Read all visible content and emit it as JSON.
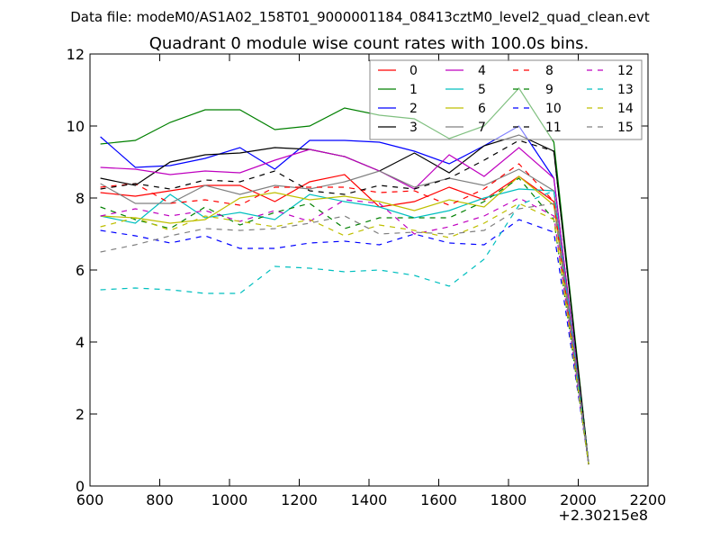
{
  "chart_data": {
    "type": "line",
    "suptitle": "Data file: modeM0/AS1A02_158T01_9000001184_08413cztM0_level2_quad_clean.evt",
    "title": "Quadrant 0 module wise count rates with 100.0s bins.",
    "xlabel": "",
    "ylabel": "",
    "x_offset_label": "+2.30215e8",
    "xlim": [
      600,
      2200
    ],
    "ylim": [
      0,
      12
    ],
    "xticks": [
      "600",
      "800",
      "1000",
      "1200",
      "1400",
      "1600",
      "1800",
      "2000",
      "2200"
    ],
    "yticks": [
      "0",
      "2",
      "4",
      "6",
      "8",
      "10",
      "12"
    ],
    "xtick_values": [
      600,
      800,
      1000,
      1200,
      1400,
      1600,
      1800,
      2000,
      2200
    ],
    "ytick_values": [
      0,
      2,
      4,
      6,
      8,
      10,
      12
    ],
    "grid": false,
    "legend_position": "top-right",
    "x": [
      630,
      730,
      830,
      930,
      1030,
      1130,
      1230,
      1330,
      1430,
      1530,
      1630,
      1730,
      1830,
      1930,
      2030
    ],
    "series": [
      {
        "name": "0",
        "color": "#ff0000",
        "style": "solid",
        "values": [
          8.15,
          8.05,
          8.2,
          8.35,
          8.35,
          7.9,
          8.45,
          8.65,
          7.75,
          7.9,
          8.3,
          7.95,
          8.6,
          7.9,
          0.6
        ]
      },
      {
        "name": "1",
        "color": "#008000",
        "style": "solid",
        "values": [
          9.5,
          9.6,
          10.1,
          10.45,
          10.45,
          9.9,
          10.0,
          10.5,
          10.3,
          10.2,
          9.65,
          10.0,
          11.05,
          9.55,
          0.6
        ]
      },
      {
        "name": "2",
        "color": "#0000ff",
        "style": "solid",
        "values": [
          9.7,
          8.85,
          8.9,
          9.1,
          9.4,
          8.8,
          9.6,
          9.6,
          9.55,
          9.3,
          8.95,
          9.45,
          10.0,
          8.55,
          0.6
        ]
      },
      {
        "name": "3",
        "color": "#000000",
        "style": "solid",
        "values": [
          8.55,
          8.35,
          9.0,
          9.2,
          9.25,
          9.4,
          9.35,
          9.15,
          8.75,
          9.25,
          8.7,
          9.45,
          9.75,
          9.3,
          0.6
        ]
      },
      {
        "name": "4",
        "color": "#bf00bf",
        "style": "solid",
        "values": [
          8.85,
          8.8,
          8.65,
          8.75,
          8.7,
          9.05,
          9.35,
          9.15,
          8.75,
          8.25,
          9.2,
          8.6,
          9.4,
          8.55,
          0.6
        ]
      },
      {
        "name": "5",
        "color": "#00bfbf",
        "style": "solid",
        "values": [
          7.5,
          7.3,
          8.1,
          7.45,
          7.6,
          7.4,
          8.1,
          7.9,
          7.75,
          7.45,
          7.65,
          8.0,
          8.25,
          8.2,
          0.6
        ]
      },
      {
        "name": "6",
        "color": "#bfbf00",
        "style": "solid",
        "values": [
          7.5,
          7.45,
          7.3,
          7.4,
          8.0,
          8.15,
          7.95,
          8.05,
          7.9,
          7.65,
          7.95,
          7.75,
          8.6,
          7.8,
          0.6
        ]
      },
      {
        "name": "7",
        "color": "#808080",
        "style": "solid",
        "values": [
          8.4,
          7.85,
          7.85,
          8.35,
          8.1,
          8.35,
          8.25,
          8.45,
          8.75,
          8.3,
          8.55,
          8.35,
          8.8,
          8.2,
          0.6
        ]
      },
      {
        "name": "8",
        "color": "#ff0000",
        "style": "dashed",
        "values": [
          8.3,
          8.4,
          7.85,
          7.95,
          7.8,
          8.3,
          8.3,
          8.3,
          8.15,
          8.2,
          7.8,
          8.25,
          8.95,
          7.9,
          0.6
        ]
      },
      {
        "name": "9",
        "color": "#008000",
        "style": "dashed",
        "values": [
          7.75,
          7.4,
          7.15,
          7.75,
          7.25,
          7.6,
          7.85,
          7.15,
          7.45,
          7.45,
          7.45,
          7.9,
          8.55,
          7.4,
          0.6
        ]
      },
      {
        "name": "10",
        "color": "#0000ff",
        "style": "dashed",
        "values": [
          7.1,
          6.95,
          6.75,
          6.95,
          6.6,
          6.6,
          6.75,
          6.8,
          6.7,
          7.0,
          6.75,
          6.7,
          7.4,
          7.05,
          0.6
        ]
      },
      {
        "name": "11",
        "color": "#000000",
        "style": "dashed",
        "values": [
          8.25,
          8.4,
          8.25,
          8.5,
          8.45,
          8.75,
          8.2,
          8.1,
          8.35,
          8.25,
          8.55,
          9.05,
          9.6,
          9.3,
          0.6
        ]
      },
      {
        "name": "12",
        "color": "#bf00bf",
        "style": "dashed",
        "values": [
          7.5,
          7.7,
          7.5,
          7.65,
          7.35,
          7.65,
          7.35,
          7.95,
          7.85,
          7.0,
          7.2,
          7.5,
          8.0,
          7.5,
          0.6
        ]
      },
      {
        "name": "13",
        "color": "#00bfbf",
        "style": "dashed",
        "values": [
          5.45,
          5.5,
          5.45,
          5.35,
          5.35,
          6.1,
          6.05,
          5.95,
          6.0,
          5.85,
          5.55,
          6.3,
          7.8,
          8.2,
          0.6
        ]
      },
      {
        "name": "14",
        "color": "#bfbf00",
        "style": "dashed",
        "values": [
          7.2,
          7.45,
          7.1,
          7.5,
          7.35,
          7.2,
          7.4,
          6.95,
          7.25,
          7.1,
          6.9,
          7.3,
          7.85,
          7.4,
          0.6
        ]
      },
      {
        "name": "15",
        "color": "#808080",
        "style": "dashed",
        "values": [
          6.5,
          6.7,
          6.95,
          7.15,
          7.1,
          7.15,
          7.3,
          7.5,
          7.0,
          7.05,
          7.0,
          7.1,
          7.7,
          7.85,
          0.6
        ]
      }
    ]
  }
}
